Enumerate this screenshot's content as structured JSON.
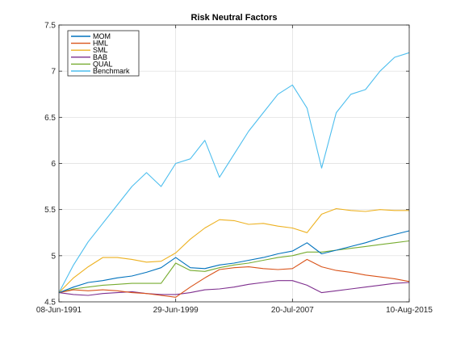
{
  "chart_data": {
    "type": "line",
    "title": "Risk Neutral Factors",
    "xlabel": "",
    "ylabel": "",
    "x_ticks": [
      "08-Jun-1991",
      "29-Jun-1999",
      "20-Jul-2007",
      "10-Aug-2015"
    ],
    "x": [
      "1991-06",
      "1992-06",
      "1993-06",
      "1994-06",
      "1995-06",
      "1996-06",
      "1997-06",
      "1998-06",
      "1999-06",
      "2000-06",
      "2001-06",
      "2002-06",
      "2003-06",
      "2004-06",
      "2005-06",
      "2006-06",
      "2007-06",
      "2008-06",
      "2009-06",
      "2010-06",
      "2011-06",
      "2012-06",
      "2013-06",
      "2014-06",
      "2015-06"
    ],
    "ylim": [
      4.5,
      7.5
    ],
    "y_ticks": [
      "4.5",
      "5",
      "5.5",
      "6",
      "6.5",
      "7",
      "7.5"
    ],
    "grid": true,
    "legend_position": "top-left",
    "series": [
      {
        "name": "MOM",
        "color": "#0072BD",
        "values": [
          4.6,
          4.66,
          4.71,
          4.73,
          4.76,
          4.78,
          4.82,
          4.87,
          4.98,
          4.87,
          4.86,
          4.9,
          4.92,
          4.95,
          4.98,
          5.02,
          5.05,
          5.14,
          5.02,
          5.06,
          5.1,
          5.14,
          5.19,
          5.23,
          5.27
        ]
      },
      {
        "name": "HML",
        "color": "#D95319",
        "values": [
          4.6,
          4.63,
          4.62,
          4.63,
          4.62,
          4.6,
          4.59,
          4.57,
          4.55,
          4.66,
          4.76,
          4.85,
          4.87,
          4.88,
          4.86,
          4.85,
          4.86,
          4.96,
          4.88,
          4.84,
          4.82,
          4.79,
          4.77,
          4.75,
          4.72
        ]
      },
      {
        "name": "SML",
        "color": "#EDB120",
        "values": [
          4.6,
          4.76,
          4.88,
          4.98,
          4.98,
          4.96,
          4.93,
          4.94,
          5.03,
          5.18,
          5.3,
          5.39,
          5.38,
          5.34,
          5.35,
          5.32,
          5.3,
          5.25,
          5.45,
          5.51,
          5.49,
          5.48,
          5.5,
          5.49,
          5.49
        ]
      },
      {
        "name": "BAB",
        "color": "#7E2F8E",
        "values": [
          4.6,
          4.58,
          4.57,
          4.59,
          4.6,
          4.61,
          4.59,
          4.58,
          4.58,
          4.6,
          4.63,
          4.64,
          4.66,
          4.69,
          4.71,
          4.73,
          4.73,
          4.68,
          4.6,
          4.62,
          4.64,
          4.66,
          4.68,
          4.7,
          4.71
        ]
      },
      {
        "name": "QUAL",
        "color": "#77AC30",
        "values": [
          4.6,
          4.64,
          4.66,
          4.68,
          4.69,
          4.7,
          4.7,
          4.7,
          4.92,
          4.84,
          4.83,
          4.87,
          4.9,
          4.92,
          4.95,
          4.98,
          5.0,
          5.04,
          5.04,
          5.06,
          5.08,
          5.1,
          5.12,
          5.14,
          5.16
        ]
      },
      {
        "name": "Benchmark",
        "color": "#4DBEEE",
        "values": [
          4.6,
          4.9,
          5.15,
          5.35,
          5.55,
          5.75,
          5.9,
          5.75,
          6.0,
          6.05,
          6.25,
          5.85,
          6.1,
          6.35,
          6.55,
          6.75,
          6.85,
          6.6,
          5.95,
          6.55,
          6.75,
          6.8,
          7.0,
          7.15,
          7.2
        ]
      }
    ]
  }
}
